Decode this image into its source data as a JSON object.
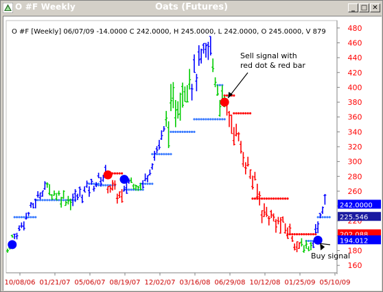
{
  "window": {
    "title_left": "O #F Weekly",
    "title_center": "Oats (Futures)",
    "buttons": [
      "_",
      "□",
      "✕"
    ]
  },
  "chart_data": {
    "type": "ohlc",
    "info_line": "O #F [Weekly] 06/07/09  -14.0000 C 242.0000, H 245.0000, L 242.0000, O 245.0000, V 879",
    "y_ticks": [
      160,
      180,
      200,
      220,
      240,
      260,
      280,
      300,
      320,
      340,
      360,
      380,
      400,
      420,
      440,
      460,
      480
    ],
    "ylim": [
      150,
      490
    ],
    "x_ticks": [
      "10/08/06",
      "01/21/07",
      "05/06/07",
      "08/19/07",
      "12/02/07",
      "03/16/08",
      "06/29/08",
      "10/12/08",
      "01/25/09",
      "05/10/09"
    ],
    "x_tick_index": [
      0,
      15,
      30,
      45,
      60,
      75,
      90,
      105,
      120,
      135
    ],
    "colors": {
      "up": "#00cc00",
      "down": "#ff0000",
      "trend": "#0000ff",
      "stop_up": "#3a7bff",
      "stop_down": "#ff0000",
      "tick_red": "#cc0000",
      "axis_text": "#ff0000"
    },
    "price_labels": [
      {
        "value": 242.0,
        "text": "242.0000",
        "bg": "#0000ff"
      },
      {
        "value": 225.546,
        "text": "225.546",
        "bg": "#1a1aa0"
      },
      {
        "value": 202.088,
        "text": "202.088",
        "bg": "#ff0000"
      },
      {
        "value": 194.012,
        "text": "194.012",
        "bg": "#0000ff"
      }
    ],
    "annotations": [
      {
        "text_lines": [
          "Sell signal with",
          "red dot & red bar"
        ],
        "target": {
          "bar": 93,
          "y": 380
        }
      },
      {
        "text_lines": [
          "Buy signal"
        ],
        "target": {
          "bar": 133,
          "y": 195
        }
      }
    ],
    "signal_dots": [
      {
        "bar": 2,
        "y": 188,
        "color": "#0000ff"
      },
      {
        "bar": 43,
        "y": 282,
        "color": "#ff0000"
      },
      {
        "bar": 50,
        "y": 276,
        "color": "#0000ff"
      },
      {
        "bar": 93,
        "y": 380,
        "color": "#ff0000"
      },
      {
        "bar": 133,
        "y": 194,
        "color": "#0000ff"
      }
    ],
    "segments": [
      {
        "n": 3,
        "start": 180,
        "end": 198,
        "color": "#00cc00",
        "vol": 10
      },
      {
        "n": 14,
        "start": 198,
        "end": 268,
        "color": "#0000ff",
        "vol": 14
      },
      {
        "n": 11,
        "start": 262,
        "end": 248,
        "color": "#00cc00",
        "vol": 18
      },
      {
        "n": 15,
        "start": 248,
        "end": 282,
        "color": "#0000ff",
        "vol": 18
      },
      {
        "n": 7,
        "start": 270,
        "end": 250,
        "color": "#ff0000",
        "vol": 20
      },
      {
        "n": 3,
        "start": 258,
        "end": 274,
        "color": "#0000ff",
        "vol": 16
      },
      {
        "n": 5,
        "start": 274,
        "end": 266,
        "color": "#00cc00",
        "vol": 14
      },
      {
        "n": 10,
        "start": 268,
        "end": 340,
        "color": "#0000ff",
        "vol": 18
      },
      {
        "n": 11,
        "start": 350,
        "end": 420,
        "color": "#00cc00",
        "vol": 45
      },
      {
        "n": 9,
        "start": 410,
        "end": 452,
        "color": "#0000ff",
        "vol": 40
      },
      {
        "n": 4,
        "start": 430,
        "end": 385,
        "color": "#00cc00",
        "vol": 35
      },
      {
        "n": 2,
        "start": 385,
        "end": 372,
        "color": "#00cc00",
        "vol": 25
      },
      {
        "n": 15,
        "start": 370,
        "end": 250,
        "color": "#ff0000",
        "vol": 28
      },
      {
        "n": 13,
        "start": 235,
        "end": 205,
        "color": "#ff0000",
        "vol": 22
      },
      {
        "n": 4,
        "start": 200,
        "end": 180,
        "color": "#ff0000",
        "vol": 18
      },
      {
        "n": 5,
        "start": 188,
        "end": 185,
        "color": "#00cc00",
        "vol": 14
      },
      {
        "n": 6,
        "start": 195,
        "end": 250,
        "color": "#0000ff",
        "vol": 16
      }
    ],
    "stops": [
      {
        "from": 3,
        "to": 12,
        "y": 225,
        "color": "#3a7bff"
      },
      {
        "from": 12,
        "to": 29,
        "y": 248,
        "color": "#3a7bff"
      },
      {
        "from": 35,
        "to": 39,
        "y": 270,
        "color": "#3a7bff"
      },
      {
        "from": 38,
        "to": 46,
        "y": 268,
        "color": "#3a7bff"
      },
      {
        "from": 44,
        "to": 49,
        "y": 284,
        "color": "#ff0000"
      },
      {
        "from": 50,
        "to": 58,
        "y": 262,
        "color": "#3a7bff"
      },
      {
        "from": 57,
        "to": 62,
        "y": 270,
        "color": "#3a7bff"
      },
      {
        "from": 62,
        "to": 70,
        "y": 310,
        "color": "#3a7bff"
      },
      {
        "from": 70,
        "to": 80,
        "y": 340,
        "color": "#3a7bff"
      },
      {
        "from": 80,
        "to": 93,
        "y": 357,
        "color": "#3a7bff"
      },
      {
        "from": 90,
        "to": 92,
        "y": 403,
        "color": "#3a7bff"
      },
      {
        "from": 93,
        "to": 97,
        "y": 389,
        "color": "#ff0000"
      },
      {
        "from": 97,
        "to": 104,
        "y": 365,
        "color": "#ff0000"
      },
      {
        "from": 105,
        "to": 120,
        "y": 250,
        "color": "#ff0000"
      },
      {
        "from": 120,
        "to": 132,
        "y": 202,
        "color": "#ff0000"
      },
      {
        "from": 128,
        "to": 132,
        "y": 193,
        "color": "#3a7bff"
      },
      {
        "from": 133,
        "to": 138,
        "y": 225,
        "color": "#3a7bff"
      }
    ]
  }
}
